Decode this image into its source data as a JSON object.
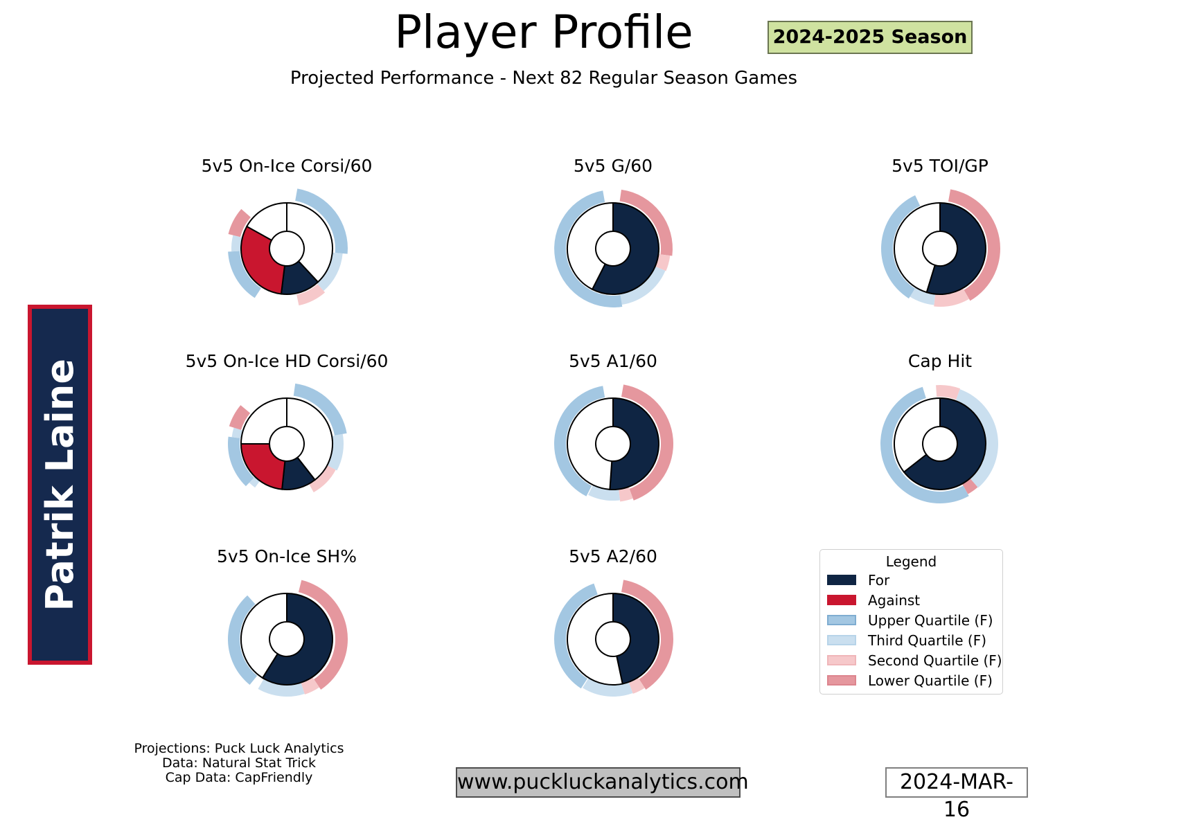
{
  "header": {
    "title": "Player Profile",
    "season_badge": "2024-2025 Season",
    "subtitle": "Projected Performance - Next 82 Regular Season Games"
  },
  "player": {
    "name": "Patrik Laine"
  },
  "colors": {
    "for": "#0f2543",
    "against": "#c9162f",
    "upper": "#a3c7e2",
    "third": "#cadfef",
    "second": "#f6c8ca",
    "lower": "#e5979e",
    "upper_border": "#7fadd1",
    "third_border": "#b7d4e9",
    "second_border": "#f0b6b9",
    "lower_border": "#dd858e"
  },
  "chart_data": {
    "type": "donut-grid",
    "note": "Angles in degrees, 0 = 12 o'clock, clockwise. fill 'for'=navy, 'against'=red, 'none'=white. Ring arcs show projection quartiles.",
    "charts": [
      {
        "title": "5v5 On-Ice Corsi/60",
        "col": 0,
        "row": 0,
        "slices": [
          {
            "fill": "none",
            "start": 0,
            "end": 137
          },
          {
            "fill": "for",
            "start": 137,
            "end": 187
          },
          {
            "fill": "against",
            "start": 187,
            "end": 299
          },
          {
            "fill": "none",
            "start": 299,
            "end": 360
          }
        ],
        "ring": [
          {
            "band": "upper",
            "start": 10,
            "end": 95,
            "r0": 70,
            "r1": 88
          },
          {
            "band": "third",
            "start": 95,
            "end": 139,
            "r0": 66,
            "r1": 81
          },
          {
            "band": "second",
            "start": 139,
            "end": 168,
            "r0": 68,
            "r1": 84
          },
          {
            "band": "upper",
            "start": 213,
            "end": 267,
            "r0": 68,
            "r1": 85
          },
          {
            "band": "third",
            "start": 267,
            "end": 284,
            "r0": 65,
            "r1": 80
          },
          {
            "band": "lower",
            "start": 284,
            "end": 311,
            "r0": 69,
            "r1": 87
          }
        ]
      },
      {
        "title": "5v5 G/60",
        "col": 1,
        "row": 0,
        "slices": [
          {
            "fill": "for",
            "start": 0,
            "end": 207
          },
          {
            "fill": "none",
            "start": 207,
            "end": 360
          }
        ],
        "ring": [
          {
            "band": "lower",
            "start": 8,
            "end": 97,
            "r0": 69,
            "r1": 86
          },
          {
            "band": "second",
            "start": 97,
            "end": 113,
            "r0": 67,
            "r1": 83
          },
          {
            "band": "third",
            "start": 113,
            "end": 171,
            "r0": 66,
            "r1": 82
          },
          {
            "band": "upper",
            "start": 171,
            "end": 350,
            "r0": 68,
            "r1": 85
          }
        ]
      },
      {
        "title": "5v5 TOI/GP",
        "col": 2,
        "row": 0,
        "slices": [
          {
            "fill": "for",
            "start": 0,
            "end": 197
          },
          {
            "fill": "none",
            "start": 197,
            "end": 360
          }
        ],
        "ring": [
          {
            "band": "lower",
            "start": 10,
            "end": 150,
            "r0": 69,
            "r1": 87
          },
          {
            "band": "second",
            "start": 150,
            "end": 186,
            "r0": 67,
            "r1": 84
          },
          {
            "band": "third",
            "start": 186,
            "end": 212,
            "r0": 66,
            "r1": 82
          },
          {
            "band": "upper",
            "start": 212,
            "end": 335,
            "r0": 68,
            "r1": 85
          }
        ]
      },
      {
        "title": "5v5 On-Ice HD Corsi/60",
        "col": 0,
        "row": 1,
        "slices": [
          {
            "fill": "none",
            "start": 0,
            "end": 142
          },
          {
            "fill": "for",
            "start": 142,
            "end": 186
          },
          {
            "fill": "against",
            "start": 186,
            "end": 270
          },
          {
            "fill": "none",
            "start": 270,
            "end": 360
          }
        ],
        "ring": [
          {
            "band": "upper",
            "start": 8,
            "end": 80,
            "r0": 70,
            "r1": 88
          },
          {
            "band": "third",
            "start": 80,
            "end": 118,
            "r0": 66,
            "r1": 82
          },
          {
            "band": "second",
            "start": 118,
            "end": 151,
            "r0": 64,
            "r1": 80
          },
          {
            "band": "third",
            "start": 216,
            "end": 224,
            "r0": 63,
            "r1": 78
          },
          {
            "band": "upper",
            "start": 224,
            "end": 277,
            "r0": 68,
            "r1": 85
          },
          {
            "band": "third",
            "start": 277,
            "end": 287,
            "r0": 65,
            "r1": 80
          },
          {
            "band": "lower",
            "start": 287,
            "end": 310,
            "r0": 69,
            "r1": 87
          }
        ]
      },
      {
        "title": "5v5 A1/60",
        "col": 1,
        "row": 1,
        "slices": [
          {
            "fill": "for",
            "start": 0,
            "end": 184
          },
          {
            "fill": "none",
            "start": 184,
            "end": 360
          }
        ],
        "ring": [
          {
            "band": "lower",
            "start": 10,
            "end": 160,
            "r0": 69,
            "r1": 87
          },
          {
            "band": "second",
            "start": 160,
            "end": 173,
            "r0": 67,
            "r1": 84
          },
          {
            "band": "third",
            "start": 173,
            "end": 206,
            "r0": 66,
            "r1": 82
          },
          {
            "band": "upper",
            "start": 207,
            "end": 350,
            "r0": 68,
            "r1": 85
          }
        ]
      },
      {
        "title": "Cap Hit",
        "col": 2,
        "row": 1,
        "slices": [
          {
            "fill": "for",
            "start": 0,
            "end": 232
          },
          {
            "fill": "none",
            "start": 232,
            "end": 360
          }
        ],
        "ring": [
          {
            "band": "second",
            "start": -4,
            "end": 20,
            "r0": 68,
            "r1": 85
          },
          {
            "band": "third",
            "start": 20,
            "end": 139,
            "r0": 67,
            "r1": 84
          },
          {
            "band": "lower",
            "start": 139,
            "end": 151,
            "r0": 66,
            "r1": 83
          },
          {
            "band": "upper",
            "start": 151,
            "end": 343,
            "r0": 69,
            "r1": 86
          }
        ]
      },
      {
        "title": "5v5 On-Ice SH%",
        "col": 0,
        "row": 2,
        "slices": [
          {
            "fill": "for",
            "start": 0,
            "end": 212
          },
          {
            "fill": "none",
            "start": 212,
            "end": 360
          }
        ],
        "ring": [
          {
            "band": "lower",
            "start": 14,
            "end": 146,
            "r0": 70,
            "r1": 88
          },
          {
            "band": "second",
            "start": 146,
            "end": 162,
            "r0": 67,
            "r1": 84
          },
          {
            "band": "third",
            "start": 162,
            "end": 210,
            "r0": 66,
            "r1": 83
          },
          {
            "band": "upper",
            "start": 219,
            "end": 318,
            "r0": 68,
            "r1": 85
          }
        ]
      },
      {
        "title": "5v5 A2/60",
        "col": 1,
        "row": 2,
        "slices": [
          {
            "fill": "for",
            "start": 0,
            "end": 168
          },
          {
            "fill": "none",
            "start": 168,
            "end": 360
          }
        ],
        "ring": [
          {
            "band": "lower",
            "start": 10,
            "end": 147,
            "r0": 69,
            "r1": 87
          },
          {
            "band": "second",
            "start": 147,
            "end": 160,
            "r0": 67,
            "r1": 84
          },
          {
            "band": "third",
            "start": 160,
            "end": 212,
            "r0": 66,
            "r1": 83
          },
          {
            "band": "upper",
            "start": 213,
            "end": 341,
            "r0": 68,
            "r1": 85
          }
        ]
      }
    ]
  },
  "legend": {
    "title": "Legend",
    "items": [
      {
        "label": "For",
        "band": "for"
      },
      {
        "label": "Against",
        "band": "against"
      },
      {
        "label": "Upper Quartile (F)",
        "band": "upper"
      },
      {
        "label": "Third Quartile (F)",
        "band": "third"
      },
      {
        "label": "Second Quartile (F)",
        "band": "second"
      },
      {
        "label": "Lower Quartile (F)",
        "band": "lower"
      }
    ]
  },
  "footer": {
    "credits": [
      "Projections: Puck Luck Analytics",
      "Data: Natural Stat Trick",
      "Cap Data: CapFriendly"
    ],
    "website": "www.puckluckanalytics.com",
    "date": "2024-MAR-16"
  }
}
